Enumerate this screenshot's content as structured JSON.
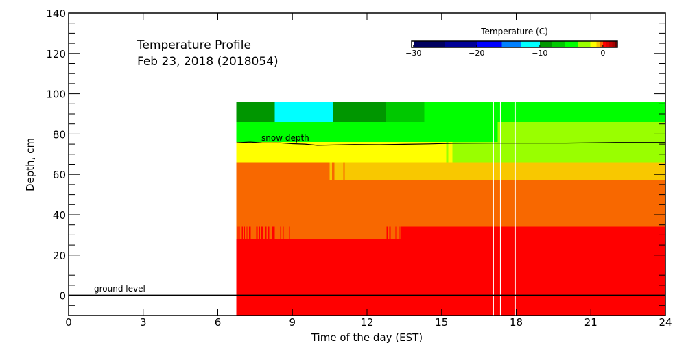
{
  "chart_data": {
    "type": "heatmap",
    "title": "Temperature Profile",
    "subtitle": "Feb 23, 2018 (2018054)",
    "xlabel": "Time of the day (EST)",
    "ylabel": "Depth, cm",
    "xlim": [
      0,
      24
    ],
    "ylim": [
      -10,
      140
    ],
    "x_ticks": [
      0,
      3,
      6,
      9,
      12,
      15,
      18,
      21,
      24
    ],
    "y_ticks": [
      0,
      20,
      40,
      60,
      80,
      100,
      120,
      140
    ],
    "colorbar": {
      "title": "Temperature (C)",
      "tick_labels": [
        -30,
        -20,
        -10,
        0
      ],
      "breaks": [
        -30,
        -25,
        -20,
        -16,
        -13,
        -10,
        -8,
        -6,
        -4,
        -2,
        -1,
        -0.5,
        0,
        0.5,
        1,
        1.5,
        2,
        3
      ],
      "colors": [
        "#000060",
        "#000098",
        "#0000ff",
        "#0080ff",
        "#00ffff",
        "#009600",
        "#00c800",
        "#00ff00",
        "#99ff00",
        "#ffff00",
        "#f8c800",
        "#f86800",
        "#ff0000",
        "#e00000",
        "#c00000",
        "#a00000",
        "#600000"
      ]
    },
    "layers": [
      {
        "depth_top": 96,
        "depth_bottom": 86,
        "segments": [
          [
            6.75,
            8.29,
            -9
          ],
          [
            8.29,
            10.64,
            -11.5
          ],
          [
            10.64,
            12.76,
            -9
          ],
          [
            12.76,
            14.3,
            -7
          ],
          [
            14.3,
            24,
            -5
          ]
        ]
      },
      {
        "depth_top": 86,
        "depth_bottom": 76,
        "segments": [
          [
            6.75,
            17.25,
            -5
          ],
          [
            17.25,
            24,
            -3
          ]
        ]
      },
      {
        "depth_top": 76,
        "depth_bottom": 66,
        "segments": [
          [
            6.75,
            15.18,
            -1.5
          ],
          [
            15.18,
            15.27,
            -3
          ],
          [
            15.27,
            15.43,
            -1.5
          ],
          [
            15.43,
            24,
            -3
          ]
        ]
      },
      {
        "depth_top": 66,
        "depth_bottom": 57,
        "segments": [
          [
            6.75,
            10.5,
            -0.4
          ],
          [
            10.5,
            10.59,
            -0.9
          ],
          [
            10.59,
            10.69,
            -0.4
          ],
          [
            10.69,
            11.05,
            -0.9
          ],
          [
            11.05,
            11.1,
            -0.4
          ],
          [
            11.1,
            24,
            -0.9
          ]
        ]
      },
      {
        "depth_top": 57,
        "depth_bottom": 34,
        "segments": [
          [
            6.75,
            24,
            -0.4
          ]
        ]
      },
      {
        "depth_top": 34,
        "depth_bottom": 28,
        "segments": [
          [
            6.75,
            24,
            -0.4
          ],
          [
            6.8,
            6.83,
            0
          ],
          [
            6.85,
            6.88,
            0
          ],
          [
            6.92,
            6.94,
            0
          ],
          [
            6.97,
            7.0,
            0
          ],
          [
            7.06,
            7.09,
            0
          ],
          [
            7.16,
            7.18,
            0
          ],
          [
            7.25,
            7.33,
            0
          ],
          [
            7.55,
            7.6,
            0
          ],
          [
            7.66,
            7.69,
            0
          ],
          [
            7.74,
            7.83,
            0
          ],
          [
            7.91,
            7.96,
            0
          ],
          [
            8.02,
            8.07,
            0
          ],
          [
            8.18,
            8.29,
            0
          ],
          [
            8.51,
            8.54,
            0
          ],
          [
            8.6,
            8.65,
            0
          ],
          [
            8.87,
            8.9,
            0
          ],
          [
            12.79,
            12.84,
            0
          ],
          [
            12.9,
            12.95,
            0
          ],
          [
            13.14,
            13.17,
            0
          ],
          [
            13.27,
            13.31,
            0
          ],
          [
            13.34,
            24,
            0
          ]
        ]
      },
      {
        "depth_top": 28,
        "depth_bottom": -10,
        "segments": [
          [
            6.75,
            24,
            0
          ]
        ]
      }
    ],
    "missing_data_gaps": [
      [
        17.06,
        17.1
      ],
      [
        17.35,
        17.39
      ],
      [
        17.93,
        17.98
      ]
    ],
    "snow_depth": {
      "label": "snow depth",
      "x": [
        6.75,
        7.3,
        7.8,
        8.5,
        9.0,
        9.5,
        10.0,
        10.8,
        11.5,
        12.5,
        13.5,
        14.5,
        15.5,
        17,
        20,
        22,
        24
      ],
      "y": [
        75.7,
        76.0,
        75.6,
        75.6,
        75.2,
        75.0,
        74.4,
        74.6,
        74.8,
        74.7,
        74.9,
        75.1,
        75.4,
        75.5,
        75.5,
        75.8,
        75.8
      ]
    },
    "ground_level": {
      "label": "ground level",
      "depth": 0
    }
  }
}
